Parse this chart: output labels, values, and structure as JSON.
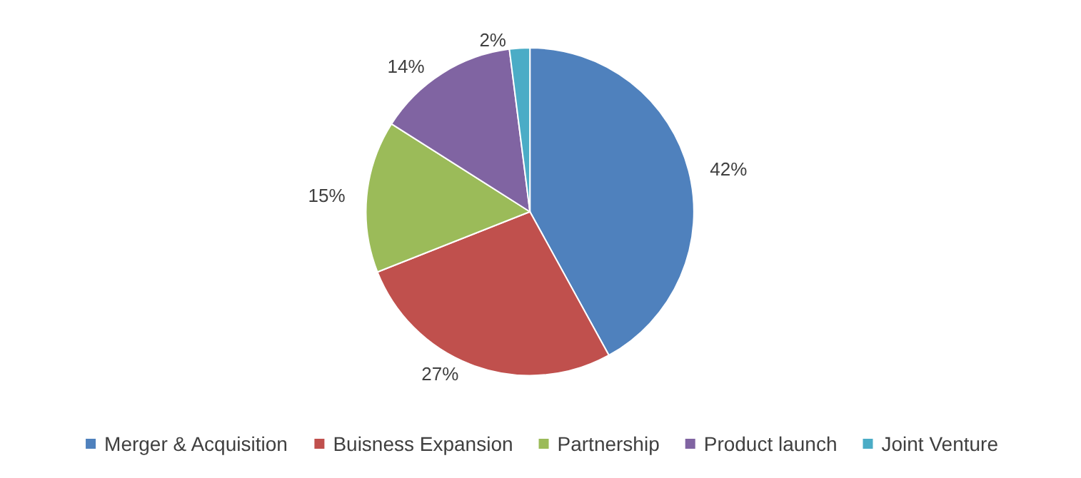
{
  "chart_data": {
    "type": "pie",
    "categories": [
      "Merger & Acquisition",
      "Buisness Expansion",
      "Partnership",
      "Product launch",
      "Joint Venture"
    ],
    "values": [
      42,
      27,
      15,
      14,
      2
    ],
    "colors": [
      "#4f81bd",
      "#c0504d",
      "#9bbb59",
      "#8064a2",
      "#4bacc6"
    ],
    "value_labels": [
      "42%",
      "27%",
      "15%",
      "14%",
      "2%"
    ],
    "legend": "bottom"
  }
}
